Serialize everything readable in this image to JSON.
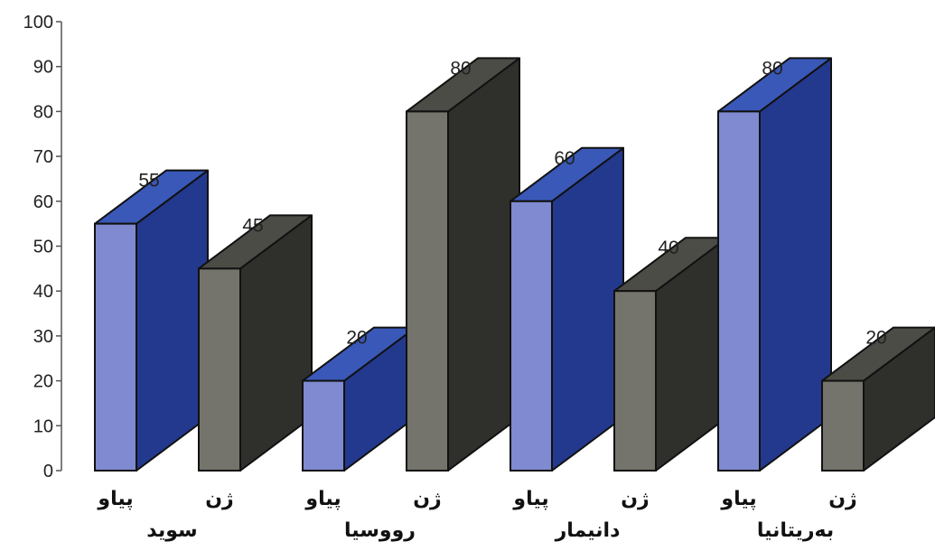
{
  "chart_data": {
    "type": "bar",
    "style": "3d",
    "ylim": [
      0,
      100
    ],
    "yticks": [
      0,
      10,
      20,
      30,
      40,
      50,
      60,
      70,
      80,
      90,
      100
    ],
    "grid": false,
    "legend": "none",
    "categories": [
      "پیاو",
      "ژن",
      "پیاو",
      "ژن",
      "پیاو",
      "ژن",
      "پیاو",
      "ژن"
    ],
    "groups": [
      "سوید",
      "رووسیا",
      "دانیمار",
      "بەریتانیا"
    ],
    "values": [
      55,
      45,
      20,
      80,
      60,
      40,
      80,
      20
    ],
    "data_labels": [
      "55",
      "45",
      "20",
      "80",
      "60",
      "40",
      "80",
      "20"
    ],
    "colors": {
      "male_front": "#7f8ad0",
      "male_top": "#3a58b8",
      "male_side": "#23398e",
      "female_front": "#74746c",
      "female_top": "#4c4c46",
      "female_side": "#2f302c"
    },
    "bar_kind": [
      "male",
      "female",
      "male",
      "female",
      "male",
      "female",
      "male",
      "female"
    ]
  }
}
